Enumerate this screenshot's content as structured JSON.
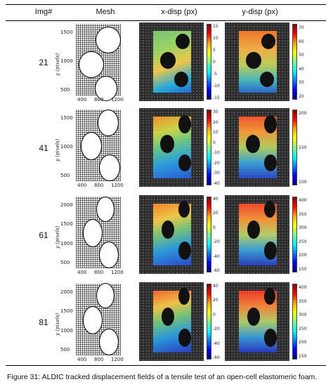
{
  "table": {
    "headers": {
      "img": "Img#",
      "mesh": "Mesh",
      "xdisp": "x-disp (px)",
      "ydisp": "y-disp (px)"
    },
    "rows": [
      {
        "img": "21",
        "mesh_y_ticks": [
          "1500",
          "1000",
          "500"
        ],
        "mesh_x_ticks": [
          "400",
          "800",
          "1200"
        ],
        "mesh_ylabel": "y (pixels)",
        "xdisp_ticks": [
          "15",
          "10",
          "5",
          "0",
          "-5",
          "-10",
          "-15"
        ],
        "ydisp_ticks": [
          "70",
          "60",
          "50",
          "40",
          "30",
          "20"
        ]
      },
      {
        "img": "41",
        "mesh_y_ticks": [
          "1500",
          "1000",
          "500"
        ],
        "mesh_x_ticks": [
          "400",
          "800",
          "1200"
        ],
        "mesh_ylabel": "y (pixels)",
        "xdisp_ticks": [
          "30",
          "20",
          "10",
          "0",
          "-10",
          "-20",
          "-30",
          "-40"
        ],
        "ydisp_ticks": [
          "200",
          "150",
          "100"
        ]
      },
      {
        "img": "61",
        "mesh_y_ticks": [
          "2000",
          "1500",
          "1000",
          "500"
        ],
        "mesh_x_ticks": [
          "400",
          "800",
          "1200"
        ],
        "mesh_ylabel": "y (pixels)",
        "xdisp_ticks": [
          "40",
          "20",
          "0",
          "-20",
          "-40",
          "-60"
        ],
        "ydisp_ticks": [
          "400",
          "350",
          "300",
          "250",
          "200",
          "150"
        ]
      },
      {
        "img": "81",
        "mesh_y_ticks": [
          "2000",
          "1500",
          "1000",
          "500"
        ],
        "mesh_x_ticks": [
          "400",
          "800",
          "1200"
        ],
        "mesh_ylabel": "y (pixels)",
        "xdisp_ticks": [
          "40",
          "20",
          "0",
          "-20",
          "-40",
          "-60"
        ],
        "ydisp_ticks": [
          "400",
          "350",
          "300",
          "250",
          "200",
          "150"
        ]
      }
    ]
  },
  "caption": "Figure 31: ALDIC tracked displacement fields of a tensile test of an open-cell elastomeric foam.",
  "colors": {
    "colormap": "jet",
    "background_speckle": "#2a2a2a"
  }
}
